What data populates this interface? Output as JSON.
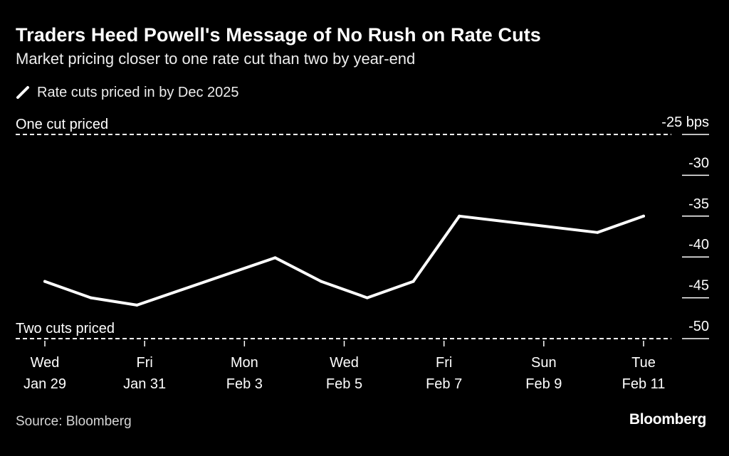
{
  "header": {
    "title": "Traders Heed Powell's Message of No Rush on Rate Cuts",
    "subtitle": "Market pricing closer to one rate cut than two by year-end"
  },
  "footer": {
    "source": "Source: Bloomberg",
    "brand": "Bloomberg"
  },
  "colors": {
    "background": "#000000",
    "line": "#ffffff",
    "reference": "#ffffff",
    "text": "#ffffff"
  },
  "chart_data": {
    "type": "line",
    "title": "Traders Heed Powell's Message of No Rush on Rate Cuts",
    "subtitle": "Market pricing closer to one rate cut than two by year-end",
    "xlabel": "",
    "ylabel": "",
    "grid": false,
    "legend": "top-left",
    "y_unit": "bps",
    "ylim": [
      -50,
      -25
    ],
    "yticks": [
      -25,
      -30,
      -35,
      -40,
      -45,
      -50
    ],
    "ytick_labels": [
      "-25 bps",
      "-30",
      "-35",
      "-40",
      "-45",
      "-50"
    ],
    "x_ticks": [
      {
        "day": "Wed",
        "date": "Jan 29"
      },
      {
        "day": "Fri",
        "date": "Jan 31"
      },
      {
        "day": "Mon",
        "date": "Feb 3"
      },
      {
        "day": "Wed",
        "date": "Feb 5"
      },
      {
        "day": "Fri",
        "date": "Feb 7"
      },
      {
        "day": "Sun",
        "date": "Feb 9"
      },
      {
        "day": "Tue",
        "date": "Feb 11"
      }
    ],
    "xlim": [
      "2025-01-29",
      "2025-02-11"
    ],
    "series": [
      {
        "name": "Rate cuts priced in by Dec 2025",
        "x": [
          "2025-01-29",
          "2025-01-30",
          "2025-01-31",
          "2025-02-03",
          "2025-02-04",
          "2025-02-05",
          "2025-02-06",
          "2025-02-07",
          "2025-02-10",
          "2025-02-11"
        ],
        "values": [
          -43.0,
          -45.0,
          -45.9,
          -40.1,
          -43.0,
          -45.0,
          -43.0,
          -35.0,
          -37.0,
          -35.0
        ]
      }
    ],
    "reference_lines": [
      {
        "label": "One cut priced",
        "value": -25
      },
      {
        "label": "Two cuts priced",
        "value": -50
      }
    ]
  }
}
